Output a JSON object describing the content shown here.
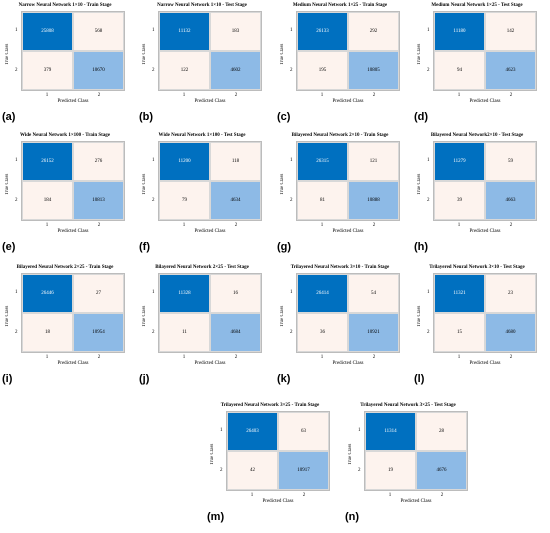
{
  "colors": {
    "tp": "#0070c0",
    "tn": "#8dbae6",
    "error": "#fdf3ee",
    "tp_text": "#ffffff",
    "tn_text": "#000000",
    "error_text": "#000000"
  },
  "common": {
    "xlabel": "Predicted Class",
    "ylabel": "True Class",
    "class_labels": [
      "1",
      "2"
    ]
  },
  "chart_data": [
    {
      "type": "heatmap",
      "label": "(a)",
      "title": "Narrow Neural Network 1×10 - Train Stage",
      "classes": [
        "1",
        "2"
      ],
      "matrix": [
        [
          25808,
          568
        ],
        [
          379,
          10670
        ]
      ]
    },
    {
      "type": "heatmap",
      "label": "(b)",
      "title": "Narrow Neural Network 1×10 - Test Stage",
      "classes": [
        "1",
        "2"
      ],
      "matrix": [
        [
          11132,
          183
        ],
        [
          122,
          4602
        ]
      ]
    },
    {
      "type": "heatmap",
      "label": "(c)",
      "title": "Medium Neural Network 1×25 - Train Stage",
      "classes": [
        "1",
        "2"
      ],
      "matrix": [
        [
          26133,
          292
        ],
        [
          195,
          10805
        ]
      ]
    },
    {
      "type": "heatmap",
      "label": "(d)",
      "title": "Medium Neural Network 1×25 - Test Stage",
      "classes": [
        "1",
        "2"
      ],
      "matrix": [
        [
          11180,
          142
        ],
        [
          94,
          4623
        ]
      ]
    },
    {
      "type": "heatmap",
      "label": "(e)",
      "title": "Wide Neural Network 1×100 - Train Stage",
      "classes": [
        "1",
        "2"
      ],
      "matrix": [
        [
          26152,
          276
        ],
        [
          184,
          10813
        ]
      ]
    },
    {
      "type": "heatmap",
      "label": "(f)",
      "title": "Wide Neural Network 1×100 - Test Stage",
      "classes": [
        "1",
        "2"
      ],
      "matrix": [
        [
          11200,
          118
        ],
        [
          79,
          4634
        ]
      ]
    },
    {
      "type": "heatmap",
      "label": "(g)",
      "title": "Bilayered Neural Network 2×10 - Train Stage",
      "classes": [
        "1",
        "2"
      ],
      "matrix": [
        [
          26315,
          121
        ],
        [
          81,
          10888
        ]
      ]
    },
    {
      "type": "heatmap",
      "label": "(h)",
      "title": "Bilayered Neural Network2×10 - Test Stage",
      "classes": [
        "1",
        "2"
      ],
      "matrix": [
        [
          11279,
          59
        ],
        [
          39,
          4663
        ]
      ]
    },
    {
      "type": "heatmap",
      "label": "(i)",
      "title": "Bilayered Neural Network 2×25 - Train Stage",
      "classes": [
        "1",
        "2"
      ],
      "matrix": [
        [
          26446,
          27
        ],
        [
          18,
          10954
        ]
      ]
    },
    {
      "type": "heatmap",
      "label": "(j)",
      "title": "Bilayered Neural Network 2×25 - Test Stage",
      "classes": [
        "1",
        "2"
      ],
      "matrix": [
        [
          11328,
          16
        ],
        [
          11,
          4684
        ]
      ]
    },
    {
      "type": "heatmap",
      "label": "(k)",
      "title": "Trilayered Neural Network 3×10 - Train Stage",
      "classes": [
        "1",
        "2"
      ],
      "matrix": [
        [
          26414,
          54
        ],
        [
          36,
          10921
        ]
      ]
    },
    {
      "type": "heatmap",
      "label": "(l)",
      "title": "Trilayered Neural Network 3×10 - Test Stage",
      "classes": [
        "1",
        "2"
      ],
      "matrix": [
        [
          11321,
          23
        ],
        [
          15,
          4680
        ]
      ]
    },
    {
      "type": "heatmap",
      "label": "(m)",
      "title": "Trilayered Neural Network 3×25 - Train Stage",
      "classes": [
        "1",
        "2"
      ],
      "matrix": [
        [
          26403,
          63
        ],
        [
          42,
          10917
        ]
      ]
    },
    {
      "type": "heatmap",
      "label": "(n)",
      "title": "Trilayered Neural Network 3×25 - Test Stage",
      "classes": [
        "1",
        "2"
      ],
      "matrix": [
        [
          11314,
          28
        ],
        [
          19,
          4676
        ]
      ]
    }
  ]
}
